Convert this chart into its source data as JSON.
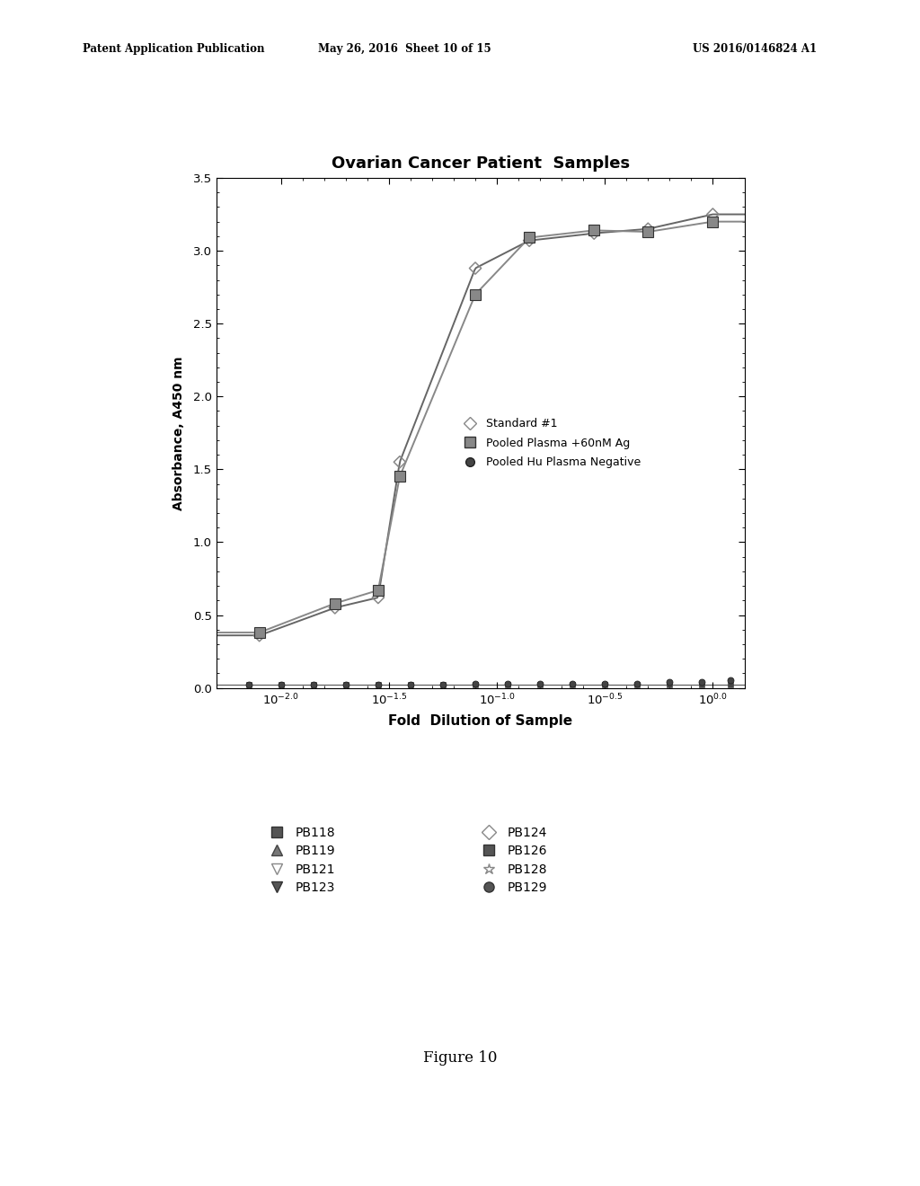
{
  "title": "Ovarian Cancer Patient  Samples",
  "xlabel": "Fold  Dilution of Sample",
  "ylabel": "Absorbance, A450 nm",
  "patent_left": "Patent Application Publication",
  "patent_mid": "May 26, 2016  Sheet 10 of 15",
  "patent_right": "US 2016/0146824 A1",
  "figure_label": "Figure 10",
  "background_color": "#ffffff",
  "ylim": [
    0.0,
    3.5
  ],
  "yticks": [
    0.0,
    0.5,
    1.0,
    1.5,
    2.0,
    2.5,
    3.0,
    3.5
  ],
  "xlim_log": [
    -2.3,
    0.15
  ],
  "xticks_log": [
    -2.0,
    -1.5,
    -1.0,
    -0.5,
    0.0
  ],
  "std1_x": [
    -2.1,
    -1.75,
    -1.55,
    -1.45,
    -1.1,
    -0.85,
    -0.55,
    -0.3,
    0.0
  ],
  "std1_y": [
    0.36,
    0.55,
    0.62,
    1.55,
    2.88,
    3.07,
    3.12,
    3.15,
    3.25
  ],
  "pp_x": [
    -2.1,
    -1.75,
    -1.55,
    -1.45,
    -1.1,
    -0.85,
    -0.55,
    -0.3,
    0.0
  ],
  "pp_y": [
    0.38,
    0.58,
    0.67,
    1.45,
    2.7,
    3.09,
    3.14,
    3.13,
    3.2
  ],
  "neg_x": [
    -2.15,
    -2.0,
    -1.85,
    -1.7,
    -1.55,
    -1.4,
    -1.25,
    -1.1,
    -0.95,
    -0.8,
    -0.65,
    -0.5,
    -0.35,
    -0.2,
    -0.05,
    0.08
  ],
  "neg_y": [
    0.02,
    0.02,
    0.02,
    0.02,
    0.02,
    0.02,
    0.02,
    0.03,
    0.03,
    0.03,
    0.03,
    0.03,
    0.03,
    0.04,
    0.04,
    0.05
  ],
  "pb_x": [
    -2.15,
    -2.0,
    -1.85,
    -1.7,
    -1.55,
    -1.4,
    -1.25,
    -1.1,
    -0.95,
    -0.8,
    -0.65,
    -0.5,
    -0.35,
    -0.2,
    -0.05,
    0.08
  ],
  "pb_y": [
    0.02,
    0.02,
    0.02,
    0.02,
    0.02,
    0.02,
    0.02,
    0.02,
    0.02,
    0.02,
    0.02,
    0.02,
    0.02,
    0.02,
    0.02,
    0.02
  ]
}
